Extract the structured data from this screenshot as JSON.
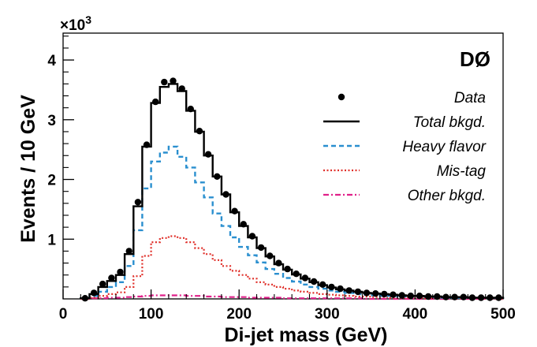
{
  "chart_data": {
    "type": "histogram",
    "experiment_label": "DØ",
    "xlabel": "Di-jet mass  (GeV)",
    "ylabel": "Events / 10 GeV",
    "y_multiplier": "×10",
    "y_multiplier_exp": "3",
    "xlim": [
      0,
      500
    ],
    "ylim": [
      0,
      4.45
    ],
    "x_ticks": [
      0,
      100,
      200,
      300,
      400,
      500
    ],
    "y_ticks": [
      1,
      2,
      3,
      4
    ],
    "bin_width": 10,
    "bin_edges": [
      20,
      30,
      40,
      50,
      60,
      70,
      80,
      90,
      100,
      110,
      120,
      130,
      140,
      150,
      160,
      170,
      180,
      190,
      200,
      210,
      220,
      230,
      240,
      250,
      260,
      270,
      280,
      290,
      300,
      310,
      320,
      330,
      340,
      350,
      360,
      370,
      380,
      390,
      400,
      410,
      420,
      430,
      440,
      450,
      460,
      470,
      480,
      490,
      500
    ],
    "series": [
      {
        "name": "Data",
        "style": "points",
        "color": "#000000",
        "x": [
          25,
          35,
          45,
          55,
          65,
          75,
          85,
          95,
          105,
          115,
          125,
          135,
          145,
          155,
          165,
          175,
          185,
          195,
          205,
          215,
          225,
          235,
          245,
          255,
          265,
          275,
          285,
          295,
          305,
          315,
          325,
          335,
          345,
          355,
          365,
          375,
          385,
          395,
          405,
          415,
          425,
          435,
          445,
          455,
          465,
          475,
          485,
          495
        ],
        "values": [
          0.01,
          0.1,
          0.25,
          0.35,
          0.45,
          0.8,
          1.62,
          2.58,
          3.3,
          3.63,
          3.65,
          3.52,
          3.18,
          2.81,
          2.42,
          2.05,
          1.75,
          1.47,
          1.25,
          1.05,
          0.86,
          0.72,
          0.6,
          0.5,
          0.42,
          0.35,
          0.29,
          0.24,
          0.2,
          0.17,
          0.14,
          0.12,
          0.1,
          0.09,
          0.08,
          0.07,
          0.06,
          0.05,
          0.05,
          0.04,
          0.04,
          0.03,
          0.03,
          0.03,
          0.02,
          0.02,
          0.02,
          0.02
        ]
      },
      {
        "name": "Total bkgd.",
        "style": "solid",
        "color": "#000000",
        "values": [
          0.01,
          0.08,
          0.2,
          0.3,
          0.4,
          0.75,
          1.55,
          2.55,
          3.28,
          3.55,
          3.6,
          3.48,
          3.15,
          2.8,
          2.4,
          2.05,
          1.75,
          1.45,
          1.22,
          1.03,
          0.85,
          0.71,
          0.58,
          0.49,
          0.41,
          0.34,
          0.28,
          0.23,
          0.19,
          0.16,
          0.14,
          0.12,
          0.1,
          0.09,
          0.08,
          0.07,
          0.06,
          0.05,
          0.05,
          0.04,
          0.04,
          0.03,
          0.03,
          0.03,
          0.02,
          0.02,
          0.02,
          0.02
        ]
      },
      {
        "name": "Heavy flavor",
        "style": "dashed",
        "color": "#2a8fcf",
        "values": [
          0.01,
          0.05,
          0.12,
          0.2,
          0.28,
          0.55,
          1.15,
          1.85,
          2.3,
          2.45,
          2.55,
          2.38,
          2.2,
          1.95,
          1.7,
          1.43,
          1.22,
          1.03,
          0.87,
          0.73,
          0.61,
          0.5,
          0.42,
          0.35,
          0.29,
          0.24,
          0.2,
          0.17,
          0.14,
          0.12,
          0.1,
          0.08,
          0.07,
          0.06,
          0.05,
          0.05,
          0.04,
          0.04,
          0.03,
          0.03,
          0.03,
          0.02,
          0.02,
          0.02,
          0.02,
          0.01,
          0.01,
          0.01
        ]
      },
      {
        "name": "Mis-tag",
        "style": "dotted",
        "color": "#e0312b",
        "values": [
          0.0,
          0.02,
          0.05,
          0.08,
          0.11,
          0.2,
          0.38,
          0.72,
          0.95,
          1.02,
          1.05,
          1.02,
          0.95,
          0.85,
          0.75,
          0.65,
          0.55,
          0.47,
          0.4,
          0.34,
          0.28,
          0.24,
          0.2,
          0.17,
          0.14,
          0.12,
          0.1,
          0.08,
          0.07,
          0.06,
          0.05,
          0.04,
          0.04,
          0.03,
          0.03,
          0.02,
          0.02,
          0.02,
          0.02,
          0.01,
          0.01,
          0.01,
          0.01,
          0.01,
          0.01,
          0.01,
          0.01,
          0.0
        ]
      },
      {
        "name": "Other bkgd.",
        "style": "dashdot",
        "color": "#e0218a",
        "values": [
          0.0,
          0.01,
          0.01,
          0.02,
          0.02,
          0.03,
          0.04,
          0.05,
          0.06,
          0.06,
          0.06,
          0.06,
          0.05,
          0.05,
          0.04,
          0.04,
          0.03,
          0.03,
          0.03,
          0.02,
          0.02,
          0.02,
          0.02,
          0.01,
          0.01,
          0.01,
          0.01,
          0.01,
          0.01,
          0.01,
          0.01,
          0.01,
          0.0,
          0.0,
          0.0,
          0.0,
          0.0,
          0.0,
          0.0,
          0.0,
          0.0,
          0.0,
          0.0,
          0.0,
          0.0,
          0.0,
          0.0,
          0.0
        ]
      }
    ],
    "legend_position": "top-right"
  }
}
